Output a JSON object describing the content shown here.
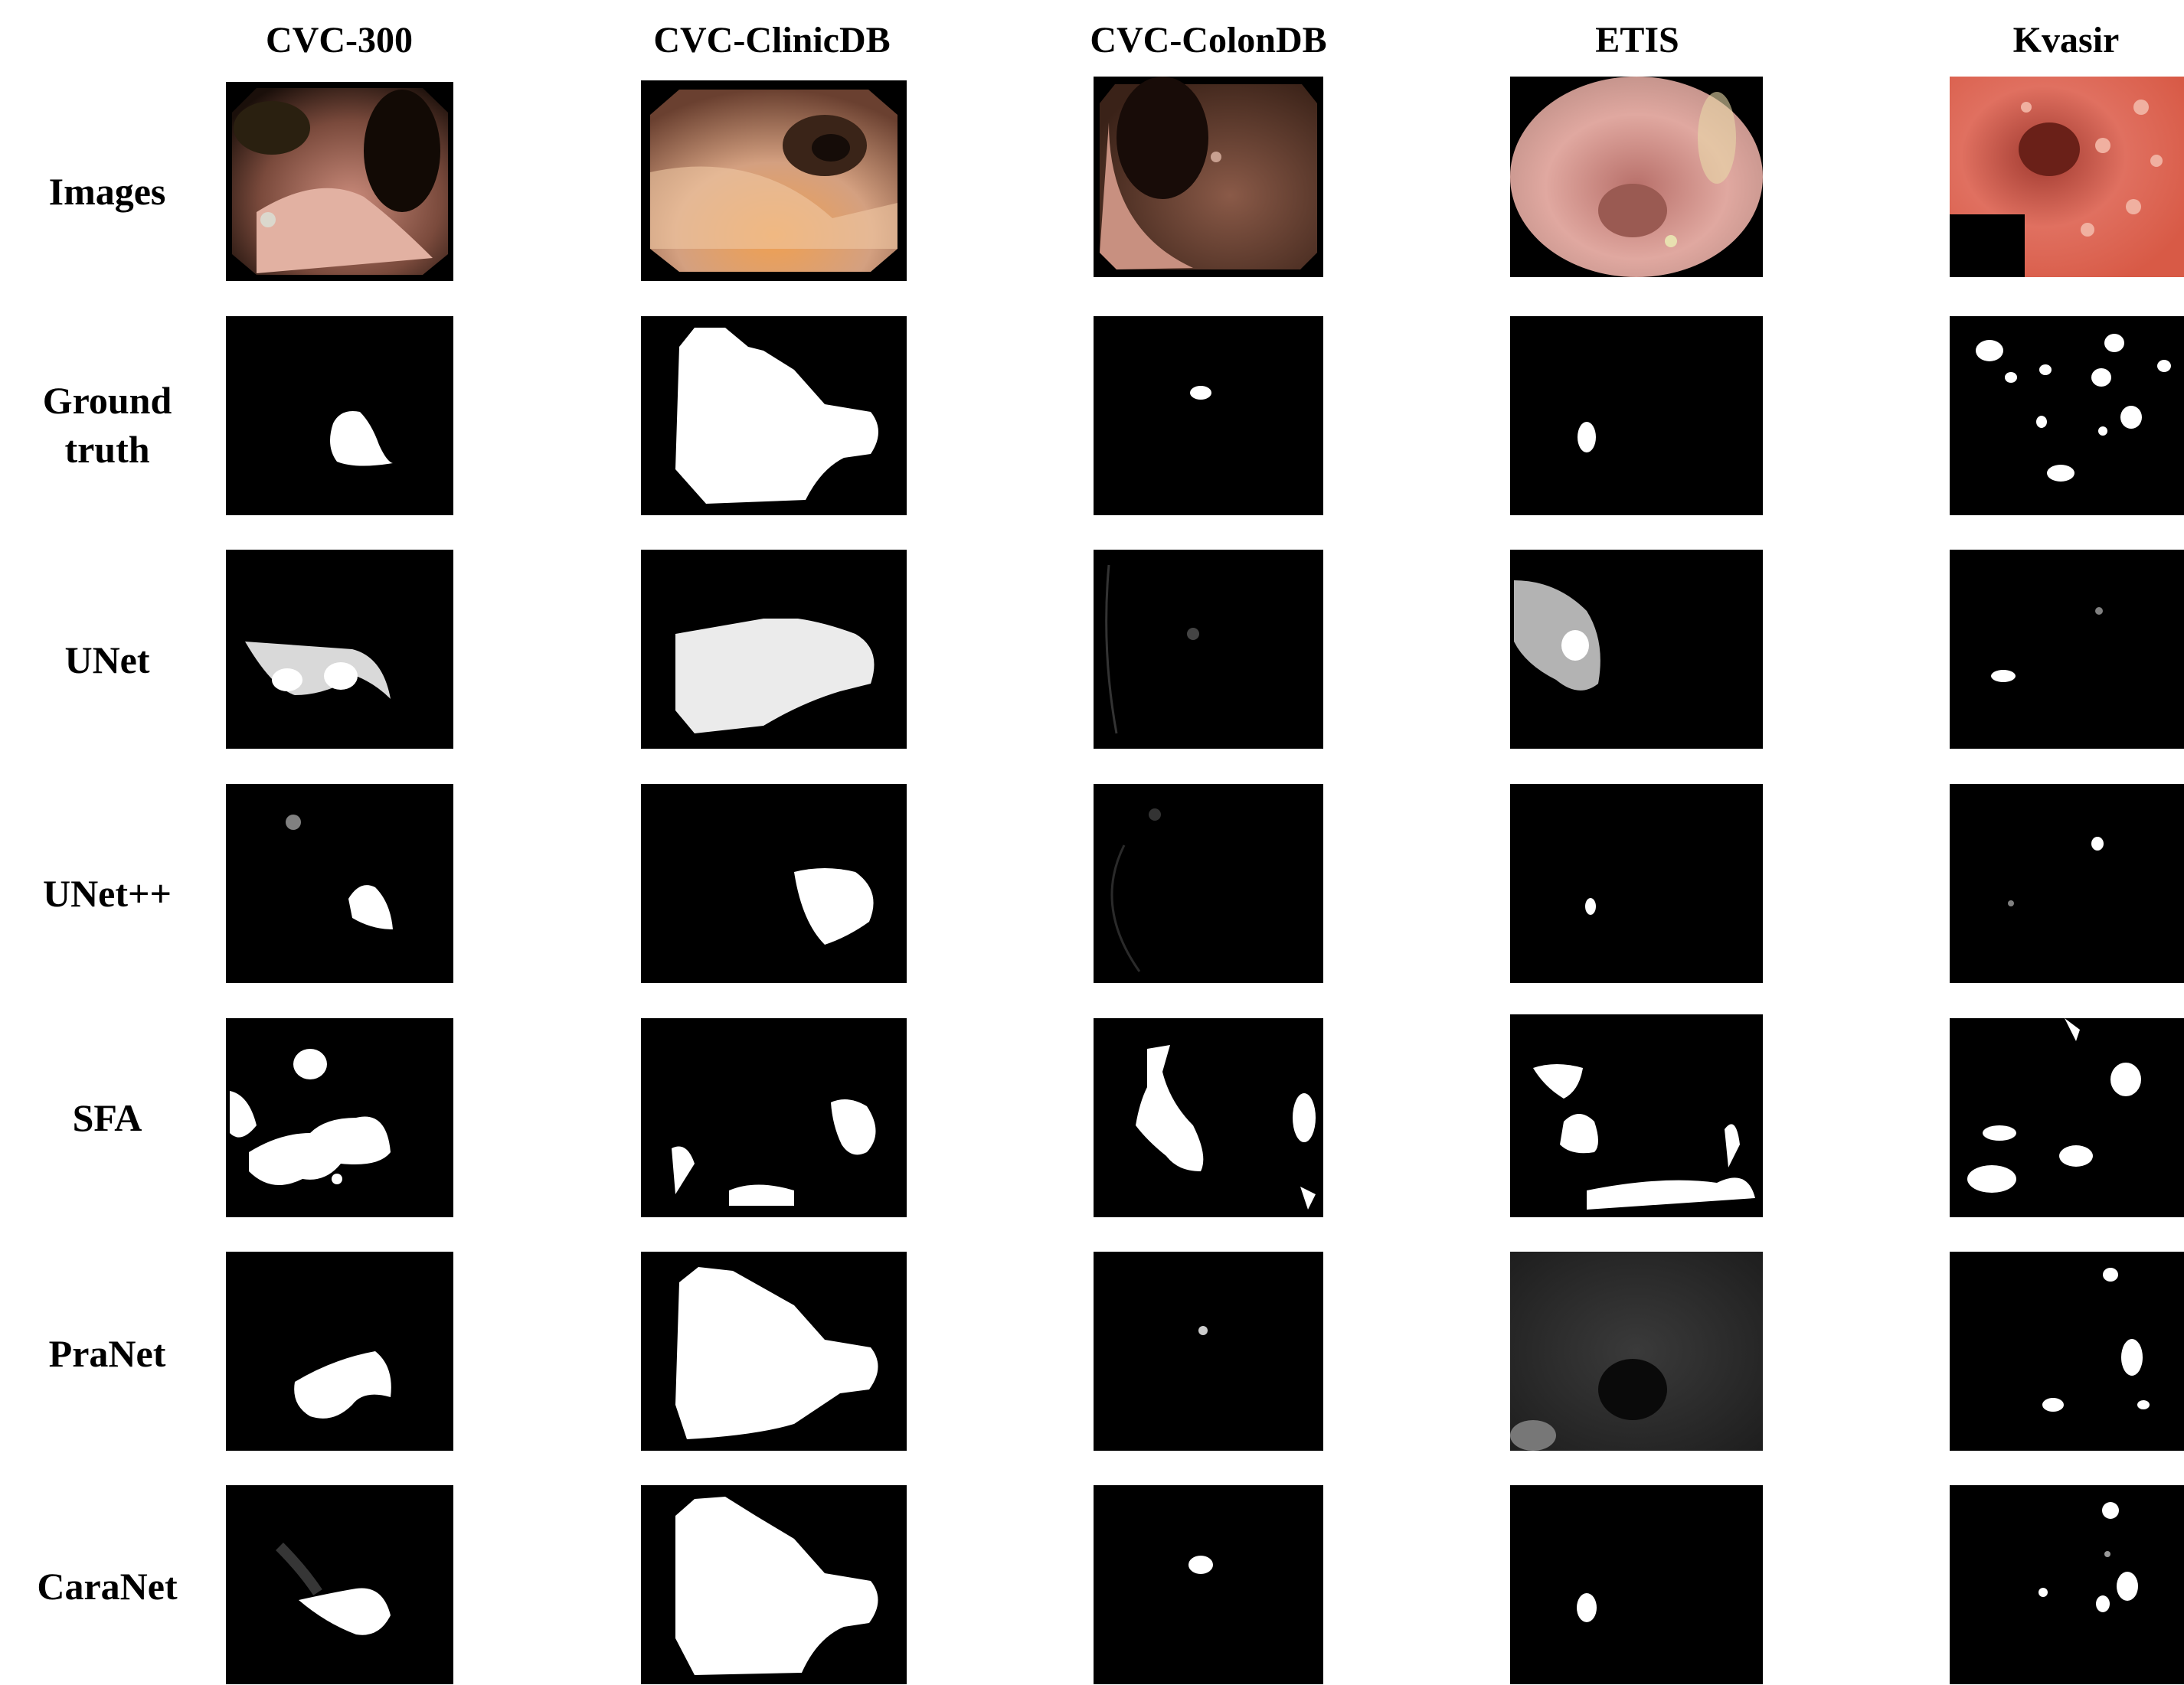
{
  "columns": [
    "CVC-300",
    "CVC-ClinicDB",
    "CVC-ColonDB",
    "ETIS",
    "Kvasir"
  ],
  "rows": [
    "Images",
    "Ground truth",
    "UNet",
    "UNet++",
    "SFA",
    "PraNet",
    "CaraNet"
  ],
  "colors": {
    "background": "#000000",
    "mask": "#ffffff",
    "tissue_pink": "#d99a8c",
    "tissue_red": "#d85a46"
  }
}
